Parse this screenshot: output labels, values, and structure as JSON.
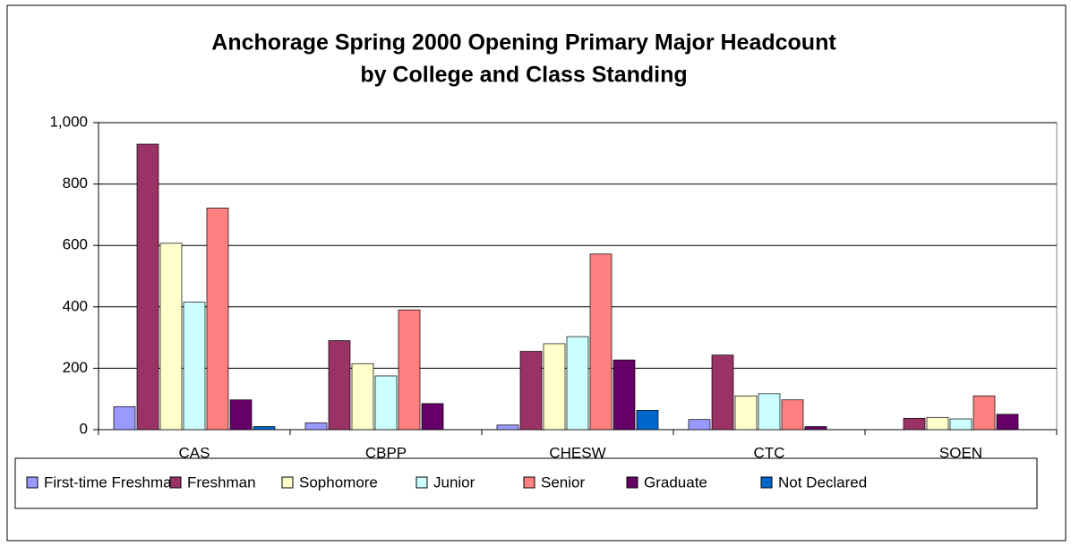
{
  "chart_data": {
    "type": "bar",
    "title": "Anchorage Spring 2000 Opening Primary Major Headcount",
    "subtitle": "by College and Class Standing",
    "categories": [
      "CAS",
      "CBPP",
      "CHESW",
      "CTC",
      "SOEN"
    ],
    "series": [
      {
        "name": "First-time Freshman",
        "color": "#9999ff",
        "values": [
          75,
          22,
          15,
          33,
          0
        ]
      },
      {
        "name": "Freshman",
        "color": "#993366",
        "values": [
          930,
          290,
          255,
          243,
          37
        ]
      },
      {
        "name": "Sophomore",
        "color": "#ffffcc",
        "values": [
          607,
          215,
          280,
          110,
          40
        ]
      },
      {
        "name": "Junior",
        "color": "#ccffff",
        "values": [
          415,
          175,
          303,
          117,
          35
        ]
      },
      {
        "name": "Senior",
        "color": "#ff8080",
        "values": [
          722,
          390,
          572,
          97,
          110
        ]
      },
      {
        "name": "Graduate",
        "color": "#660066",
        "values": [
          97,
          85,
          227,
          10,
          50
        ]
      },
      {
        "name": "Not Declared",
        "color": "#0066cc",
        "values": [
          10,
          0,
          63,
          0,
          0
        ]
      }
    ],
    "ylim": [
      0,
      1000
    ],
    "yticks": [
      0,
      200,
      400,
      600,
      800,
      {
        "value": 1000,
        "label": "1,000"
      }
    ],
    "grid": true,
    "legend": "bottom"
  }
}
